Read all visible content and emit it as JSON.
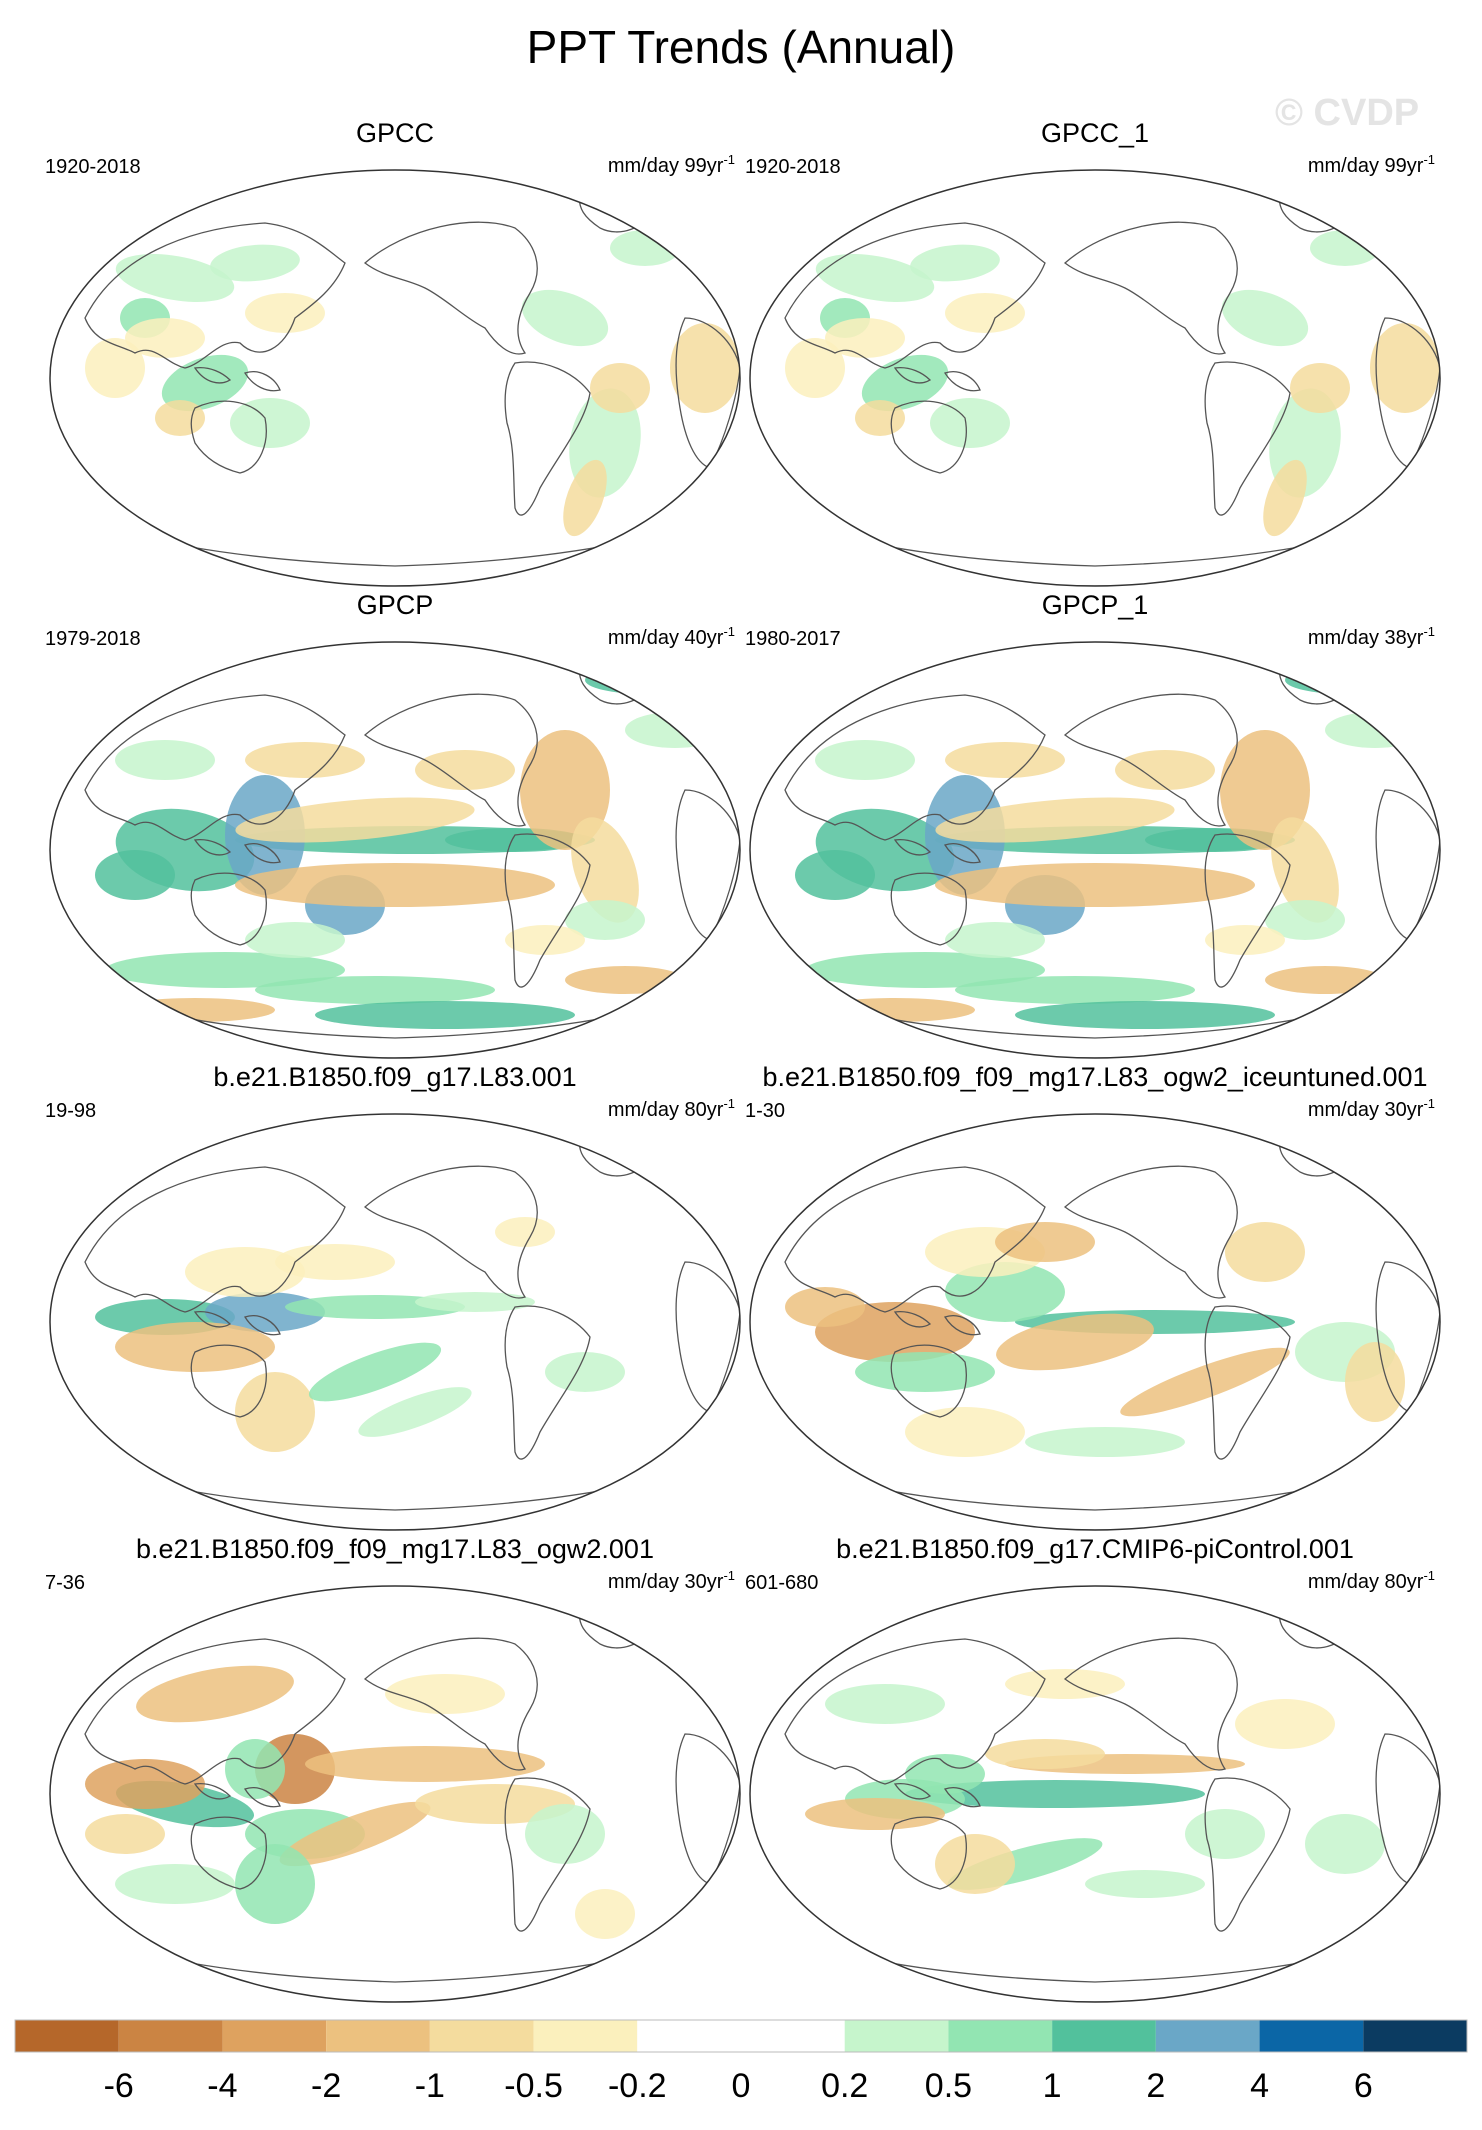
{
  "figure": {
    "title": "PPT Trends (Annual)",
    "watermark": "© CVDP"
  },
  "panels": [
    {
      "title": "GPCC",
      "period": "1920-2018",
      "units": "mm/day 99yr",
      "units_sup": "-1",
      "pattern": "gpcc"
    },
    {
      "title": "GPCC_1",
      "period": "1920-2018",
      "units": "mm/day 99yr",
      "units_sup": "-1",
      "pattern": "gpcc"
    },
    {
      "title": "GPCP",
      "period": "1979-2018",
      "units": "mm/day 40yr",
      "units_sup": "-1",
      "pattern": "gpcp"
    },
    {
      "title": "GPCP_1",
      "period": "1980-2017",
      "units": "mm/day 38yr",
      "units_sup": "-1",
      "pattern": "gpcp"
    },
    {
      "title": "b.e21.B1850.f09_g17.L83.001",
      "period": "19-98",
      "units": "mm/day 80yr",
      "units_sup": "-1",
      "pattern": "m1"
    },
    {
      "title": "b.e21.B1850.f09_f09_mg17.L83_ogw2_iceuntuned.001",
      "period": "1-30",
      "units": "mm/day 30yr",
      "units_sup": "-1",
      "pattern": "m2"
    },
    {
      "title": "b.e21.B1850.f09_f09_mg17.L83_ogw2.001",
      "period": "7-36",
      "units": "mm/day 30yr",
      "units_sup": "-1",
      "pattern": "m3"
    },
    {
      "title": "b.e21.B1850.f09_g17.CMIP6-piControl.001",
      "period": "601-680",
      "units": "mm/day 80yr",
      "units_sup": "-1",
      "pattern": "m4"
    }
  ],
  "colorbar": {
    "colors": [
      "#b5672a",
      "#cb8443",
      "#dea25f",
      "#ecc17f",
      "#f4dc9e",
      "#fbf0bd",
      "#ffffff",
      "#ffffff",
      "#c6f5cc",
      "#92e5b2",
      "#52c19c",
      "#6aa7c7",
      "#0b66a6",
      "#0b3b61"
    ],
    "labels": [
      "-6",
      "-4",
      "-2",
      "-1",
      "-0.5",
      "-0.2",
      "0",
      "0.2",
      "0.5",
      "1",
      "2",
      "4",
      "6"
    ]
  }
}
